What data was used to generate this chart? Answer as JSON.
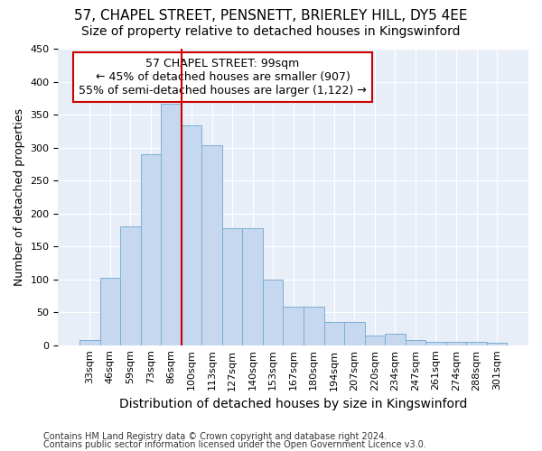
{
  "title": "57, CHAPEL STREET, PENSNETT, BRIERLEY HILL, DY5 4EE",
  "subtitle": "Size of property relative to detached houses in Kingswinford",
  "xlabel": "Distribution of detached houses by size in Kingswinford",
  "ylabel": "Number of detached properties",
  "categories": [
    "33sqm",
    "46sqm",
    "59sqm",
    "73sqm",
    "86sqm",
    "100sqm",
    "113sqm",
    "127sqm",
    "140sqm",
    "153sqm",
    "167sqm",
    "180sqm",
    "194sqm",
    "207sqm",
    "220sqm",
    "234sqm",
    "247sqm",
    "261sqm",
    "274sqm",
    "288sqm",
    "301sqm"
  ],
  "values": [
    8,
    102,
    180,
    290,
    367,
    333,
    303,
    177,
    177,
    100,
    58,
    58,
    35,
    35,
    15,
    18,
    8,
    5,
    5,
    5,
    3
  ],
  "bar_color": "#c5d8f0",
  "bar_edge_color": "#7bafd4",
  "vline_color": "#cc0000",
  "vline_x_index": 5,
  "annotation_line1": "57 CHAPEL STREET: 99sqm",
  "annotation_line2": "← 45% of detached houses are smaller (907)",
  "annotation_line3": "55% of semi-detached houses are larger (1,122) →",
  "annotation_box_color": "#ffffff",
  "annotation_box_edge": "#cc0000",
  "ylim": [
    0,
    450
  ],
  "yticks": [
    0,
    50,
    100,
    150,
    200,
    250,
    300,
    350,
    400,
    450
  ],
  "footnote1": "Contains HM Land Registry data © Crown copyright and database right 2024.",
  "footnote2": "Contains public sector information licensed under the Open Government Licence v3.0.",
  "background_color": "#e8eef8",
  "grid_color": "#ffffff",
  "title_fontsize": 11,
  "subtitle_fontsize": 10,
  "xlabel_fontsize": 10,
  "ylabel_fontsize": 9,
  "tick_fontsize": 8,
  "annotation_fontsize": 9,
  "footnote_fontsize": 7
}
